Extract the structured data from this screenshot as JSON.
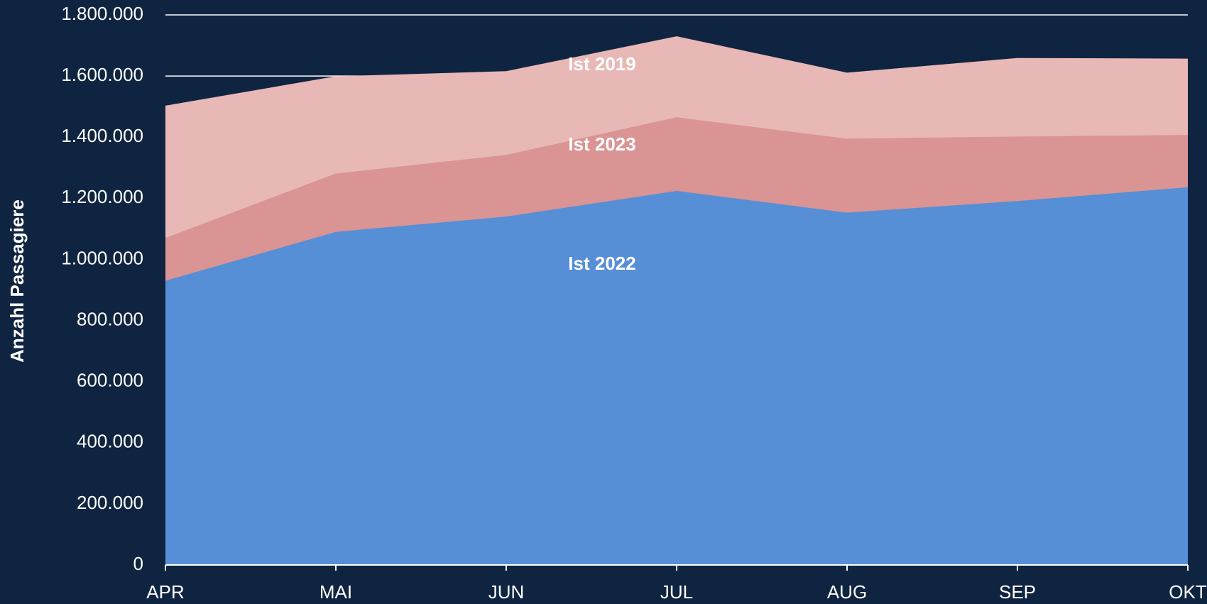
{
  "chart_data": {
    "type": "area",
    "y_label": "Anzahl Passagiere",
    "categories": [
      "APR",
      "MAI",
      "JUN",
      "JUL",
      "AUG",
      "SEP",
      "OKT"
    ],
    "series": [
      {
        "name": "Ist 2019",
        "color": "#e8b8b7",
        "values": [
          1503000,
          1599000,
          1616000,
          1730000,
          1611000,
          1659000,
          1657000
        ]
      },
      {
        "name": "Ist 2023",
        "color": "#d99493",
        "values": [
          1070000,
          1281000,
          1342000,
          1465000,
          1395000,
          1402000,
          1407000
        ]
      },
      {
        "name": "Ist 2022",
        "color": "#568fd6",
        "values": [
          930000,
          1090000,
          1140000,
          1224000,
          1153000,
          1191000,
          1236000
        ]
      }
    ],
    "ylim": [
      0,
      1800000
    ],
    "yticks": [
      0,
      {
        "value": 200000,
        "label": "200.000"
      },
      {
        "value": 400000,
        "label": "400.000"
      },
      {
        "value": 600000,
        "label": "600.000"
      },
      {
        "value": 800000,
        "label": "800.000"
      },
      {
        "value": 1000000,
        "label": "1.000.000"
      },
      {
        "value": 1200000,
        "label": "1.200.000"
      },
      {
        "value": 1400000,
        "label": "1.400.000"
      },
      {
        "value": 1600000,
        "label": "1.600.000"
      },
      {
        "value": 1800000,
        "label": "1.800.000"
      }
    ],
    "grid": true
  }
}
